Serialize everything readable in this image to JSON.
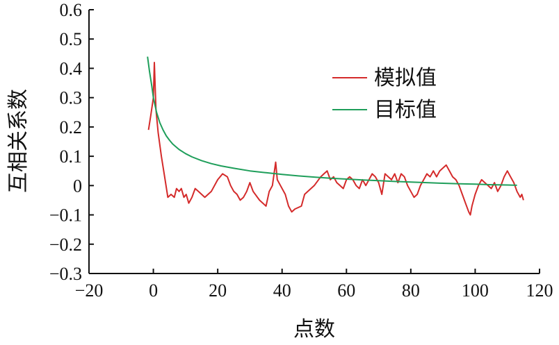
{
  "chart_data": {
    "type": "line",
    "xlabel": "点数",
    "ylabel": "互相关系数",
    "xlim": [
      -20,
      120
    ],
    "ylim": [
      -0.3,
      0.6
    ],
    "x_ticks": [
      -20,
      0,
      20,
      40,
      60,
      80,
      100,
      120
    ],
    "y_ticks": [
      -0.3,
      -0.2,
      -0.1,
      0,
      0.1,
      0.2,
      0.3,
      0.4,
      0.5,
      0.6
    ],
    "x_tick_labels": [
      "−20",
      "0",
      "20",
      "40",
      "60",
      "80",
      "100",
      "120"
    ],
    "y_tick_labels": [
      "−0.3",
      "−0.2",
      "−0.1",
      "0",
      "0.1",
      "0.2",
      "0.3",
      "0.4",
      "0.5",
      "0.6"
    ],
    "legend_position": "upper-right",
    "grid": false,
    "series": [
      {
        "name": "模拟值",
        "color": "#d42a2a",
        "points": [
          [
            -1.5,
            0.19
          ],
          [
            -0.8,
            0.24
          ],
          [
            0,
            0.3
          ],
          [
            0.3,
            0.42
          ],
          [
            0.8,
            0.26
          ],
          [
            1.5,
            0.18
          ],
          [
            2.5,
            0.1
          ],
          [
            3.5,
            0.03
          ],
          [
            4.5,
            -0.04
          ],
          [
            5.5,
            -0.03
          ],
          [
            6.5,
            -0.04
          ],
          [
            7.2,
            -0.01
          ],
          [
            8,
            -0.02
          ],
          [
            8.7,
            -0.01
          ],
          [
            9.5,
            -0.04
          ],
          [
            10.2,
            -0.03
          ],
          [
            11,
            -0.06
          ],
          [
            12,
            -0.04
          ],
          [
            13,
            -0.01
          ],
          [
            14,
            -0.02
          ],
          [
            16,
            -0.04
          ],
          [
            18,
            -0.02
          ],
          [
            20,
            0.02
          ],
          [
            21.5,
            0.04
          ],
          [
            23,
            0.03
          ],
          [
            24,
            0.0
          ],
          [
            25,
            -0.02
          ],
          [
            26,
            -0.03
          ],
          [
            27,
            -0.05
          ],
          [
            28,
            -0.04
          ],
          [
            29,
            -0.02
          ],
          [
            30,
            0.01
          ],
          [
            31,
            -0.02
          ],
          [
            33,
            -0.05
          ],
          [
            35,
            -0.07
          ],
          [
            36,
            -0.02
          ],
          [
            37,
            0.0
          ],
          [
            38,
            0.08
          ],
          [
            38.5,
            0.02
          ],
          [
            39.5,
            0.0
          ],
          [
            41,
            -0.03
          ],
          [
            42,
            -0.07
          ],
          [
            43,
            -0.09
          ],
          [
            44,
            -0.08
          ],
          [
            46,
            -0.07
          ],
          [
            47,
            -0.03
          ],
          [
            48,
            -0.02
          ],
          [
            50,
            0.0
          ],
          [
            52,
            0.03
          ],
          [
            53,
            0.04
          ],
          [
            54,
            0.05
          ],
          [
            55,
            0.02
          ],
          [
            56,
            0.03
          ],
          [
            57,
            0.01
          ],
          [
            58,
            0.0
          ],
          [
            59,
            -0.01
          ],
          [
            60,
            0.02
          ],
          [
            61,
            0.03
          ],
          [
            62,
            0.02
          ],
          [
            63,
            0.0
          ],
          [
            64,
            -0.01
          ],
          [
            65,
            0.02
          ],
          [
            66,
            0.0
          ],
          [
            67,
            0.02
          ],
          [
            68,
            0.04
          ],
          [
            69,
            0.03
          ],
          [
            70,
            0.01
          ],
          [
            71,
            -0.03
          ],
          [
            72,
            0.04
          ],
          [
            73,
            0.03
          ],
          [
            74,
            0.02
          ],
          [
            75,
            0.04
          ],
          [
            76,
            0.01
          ],
          [
            77,
            0.04
          ],
          [
            78,
            0.03
          ],
          [
            79,
            0.0
          ],
          [
            80,
            -0.02
          ],
          [
            81,
            -0.04
          ],
          [
            82,
            -0.03
          ],
          [
            83,
            0.0
          ],
          [
            84,
            0.02
          ],
          [
            85,
            0.04
          ],
          [
            86,
            0.03
          ],
          [
            87,
            0.05
          ],
          [
            88,
            0.03
          ],
          [
            89,
            0.05
          ],
          [
            90,
            0.06
          ],
          [
            91,
            0.07
          ],
          [
            92,
            0.05
          ],
          [
            93,
            0.03
          ],
          [
            94,
            0.02
          ],
          [
            95,
            0.0
          ],
          [
            96,
            -0.03
          ],
          [
            97,
            -0.06
          ],
          [
            98,
            -0.09
          ],
          [
            98.5,
            -0.1
          ],
          [
            99,
            -0.07
          ],
          [
            100,
            -0.03
          ],
          [
            101,
            0.0
          ],
          [
            102,
            0.02
          ],
          [
            103,
            0.01
          ],
          [
            104,
            0.0
          ],
          [
            105,
            -0.01
          ],
          [
            106,
            0.01
          ],
          [
            107,
            -0.02
          ],
          [
            108,
            0.0
          ],
          [
            109,
            0.03
          ],
          [
            110,
            0.05
          ],
          [
            111,
            0.03
          ],
          [
            112,
            0.01
          ],
          [
            113,
            -0.02
          ],
          [
            114,
            -0.04
          ],
          [
            114.5,
            -0.03
          ],
          [
            115,
            -0.05
          ]
        ]
      },
      {
        "name": "目标值",
        "color": "#1e9e5a",
        "points": [
          [
            -1.8,
            0.44
          ],
          [
            -1.2,
            0.39
          ],
          [
            -0.5,
            0.34
          ],
          [
            0,
            0.3
          ],
          [
            1,
            0.25
          ],
          [
            2,
            0.215
          ],
          [
            3,
            0.19
          ],
          [
            4,
            0.17
          ],
          [
            5,
            0.155
          ],
          [
            6,
            0.142
          ],
          [
            8,
            0.123
          ],
          [
            10,
            0.109
          ],
          [
            12,
            0.098
          ],
          [
            15,
            0.085
          ],
          [
            18,
            0.075
          ],
          [
            21,
            0.067
          ],
          [
            25,
            0.059
          ],
          [
            30,
            0.05
          ],
          [
            35,
            0.044
          ],
          [
            40,
            0.038
          ],
          [
            45,
            0.033
          ],
          [
            50,
            0.029
          ],
          [
            55,
            0.025
          ],
          [
            60,
            0.022
          ],
          [
            65,
            0.019
          ],
          [
            70,
            0.017
          ],
          [
            75,
            0.014
          ],
          [
            80,
            0.012
          ],
          [
            85,
            0.01
          ],
          [
            90,
            0.008
          ],
          [
            95,
            0.006
          ],
          [
            100,
            0.005
          ],
          [
            105,
            0.003
          ],
          [
            110,
            0.002
          ],
          [
            113,
            0.001
          ]
        ]
      }
    ]
  }
}
